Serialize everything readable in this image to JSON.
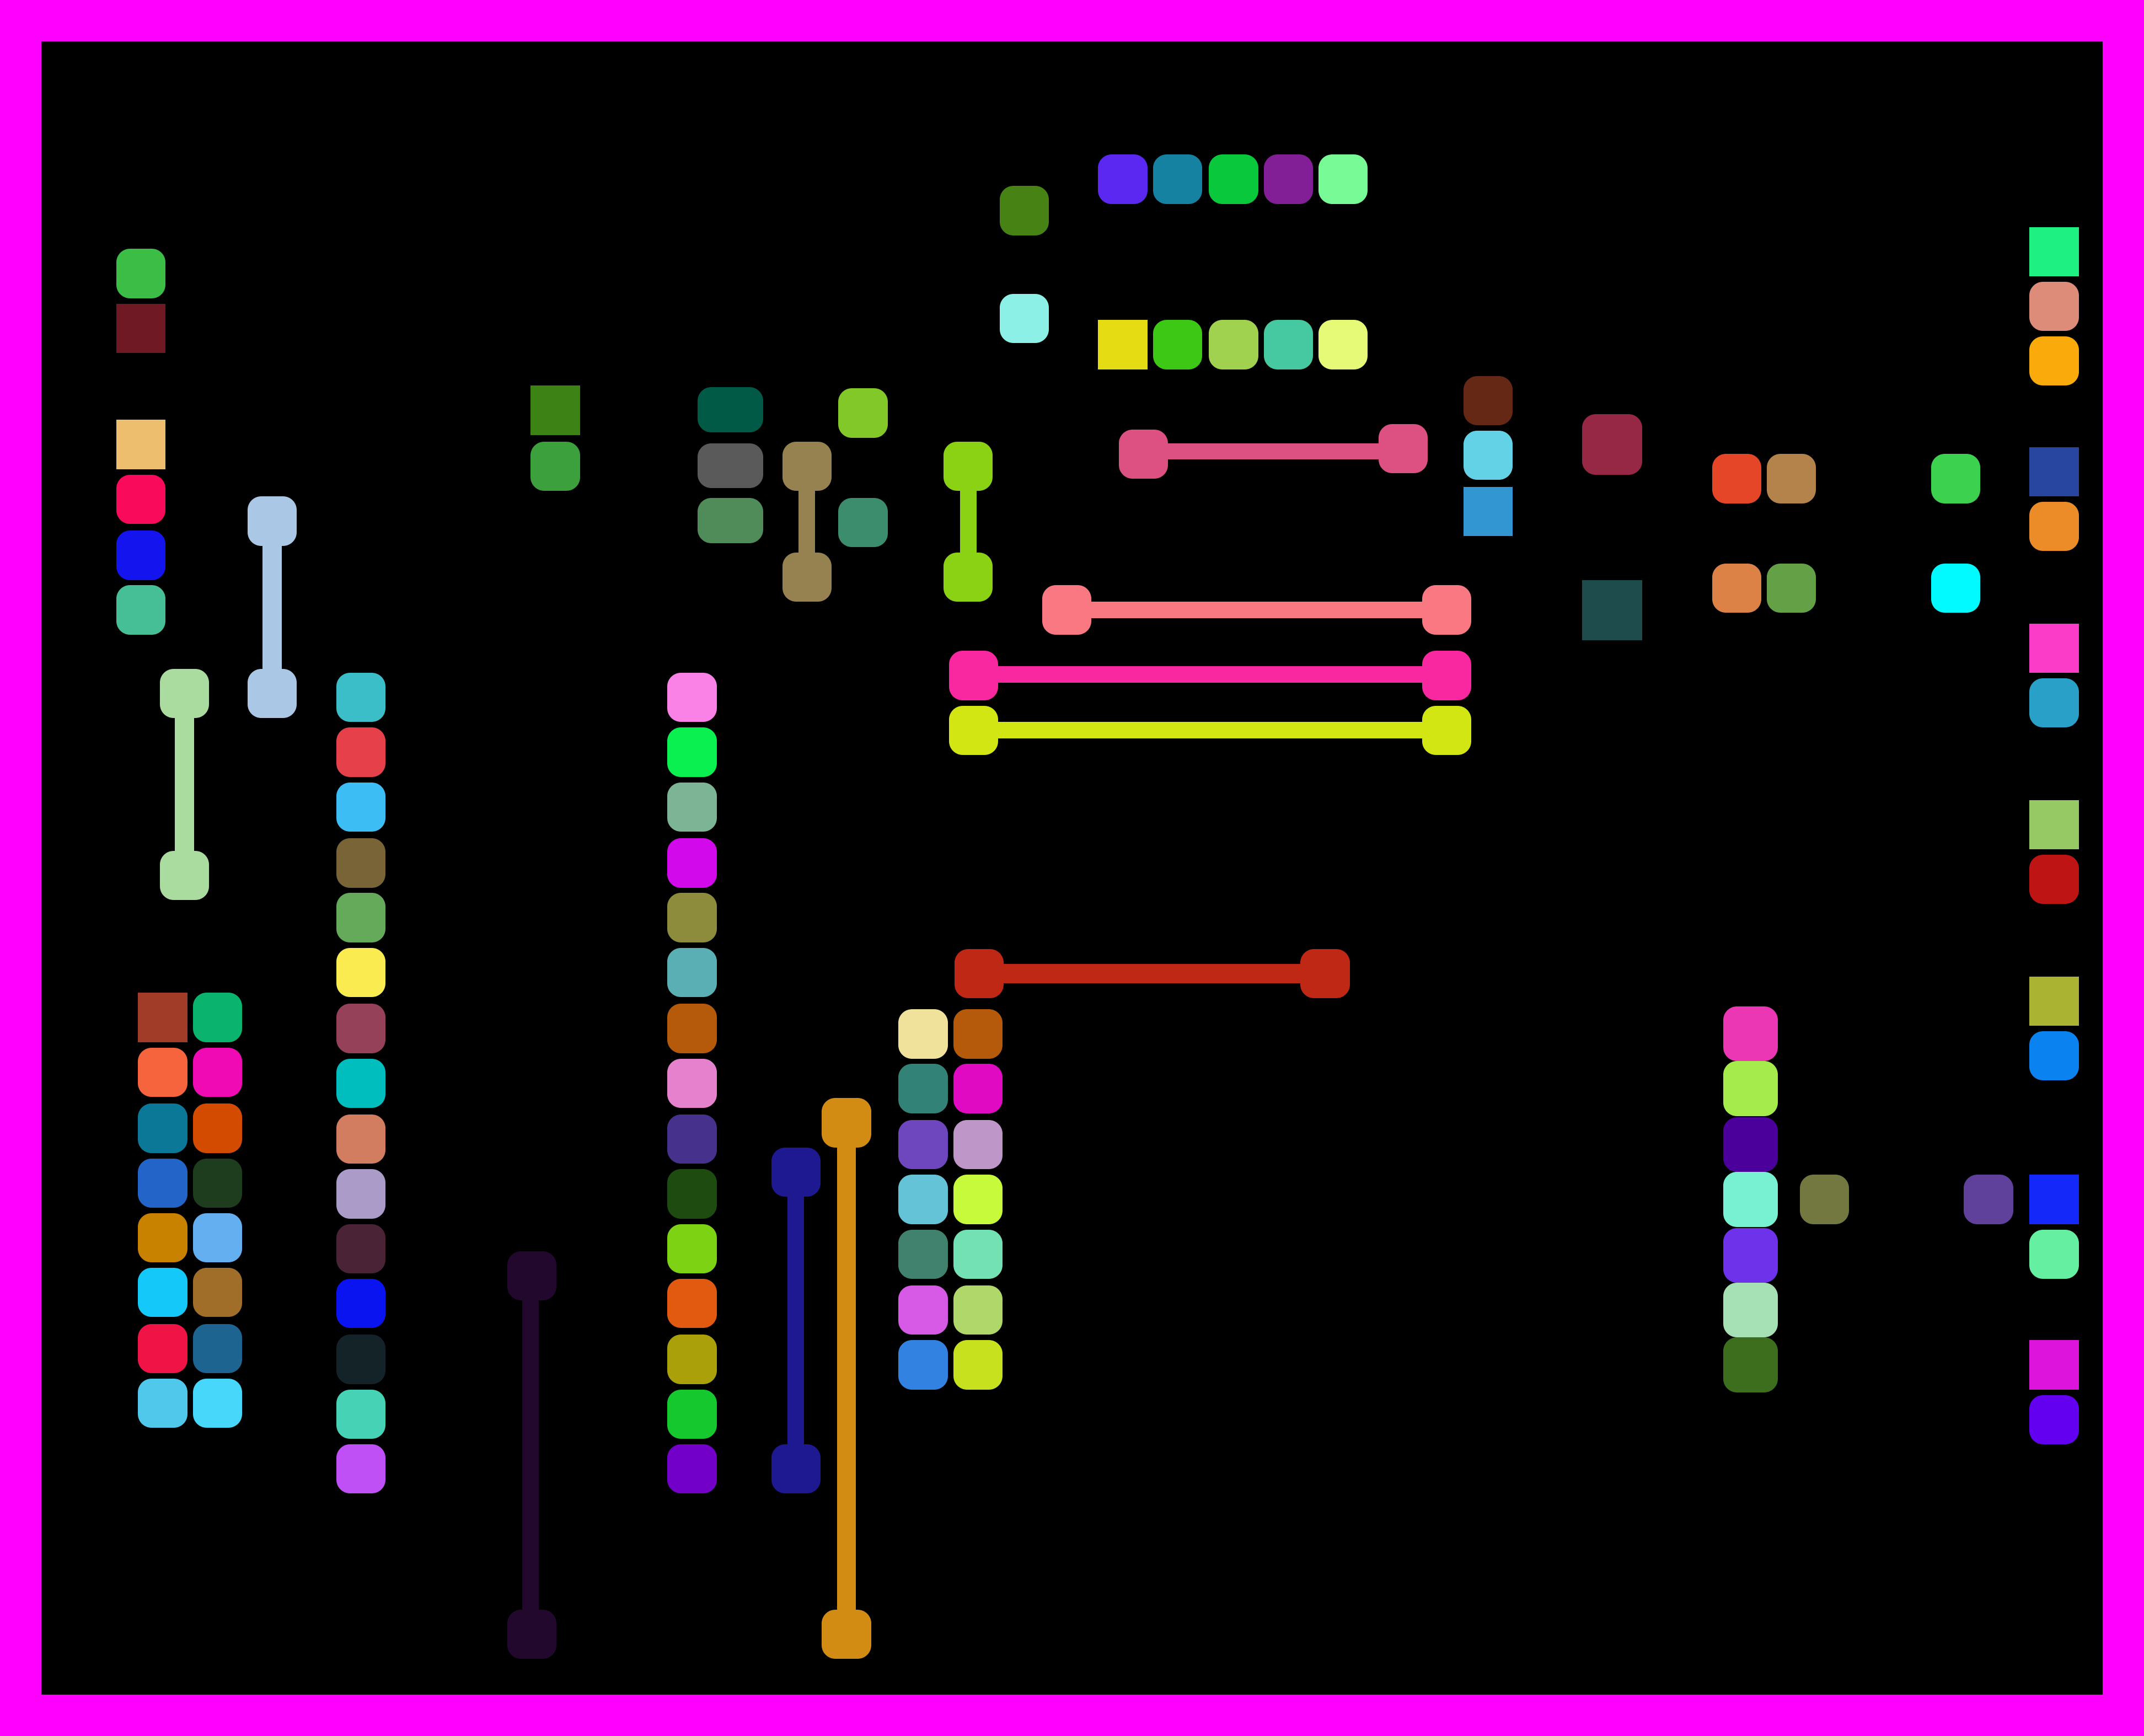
{
  "board": {
    "frame_color": "#ff00ff",
    "background": "#000000"
  },
  "palette": [
    "#3cbe46",
    "#6e1923",
    "#ecbe6e",
    "#fa0a5a",
    "#1414ee",
    "#46be96",
    "#aac8e6",
    "#aadca0",
    "#3c8214",
    "#3ca03c",
    "#005a46",
    "#5a5a5a",
    "#508c5a",
    "#82c828",
    "#968250",
    "#3c8c6e",
    "#8cd214",
    "#468214",
    "#8cf0e6",
    "#5a28f0",
    "#1482a0",
    "#0ac83c",
    "#821e96",
    "#78fa96",
    "#e6dc14",
    "#3cc814",
    "#a0d250",
    "#46c8a0",
    "#e6fa78",
    "#dc5082",
    "#642814",
    "#64d2e6",
    "#3296d2",
    "#962846",
    "#1e4b4b",
    "#e64628",
    "#b4824b",
    "#dc8246",
    "#64a046",
    "#3cd250",
    "#00faff",
    "#1ef082",
    "#dc8c78",
    "#faaa0a",
    "#2846a0",
    "#eb8c28",
    "#fa3cc8",
    "#28a0c8",
    "#96c864",
    "#be1414",
    "#aab432",
    "#0a82f0",
    "#1428fa",
    "#64f0a0",
    "#dc14dc",
    "#6400f0",
    "#fa7882",
    "#fa28a0",
    "#d2e614",
    "#be2814",
    "#3cbec8",
    "#e6414b",
    "#3cbef5",
    "#786437",
    "#64aa5a",
    "#faeb50",
    "#96415a",
    "#00bebe",
    "#d27d5f",
    "#aa9bc8",
    "#4b2337",
    "#0a14f0",
    "#142328",
    "#46d2b4",
    "#be50f5",
    "#fa82e6",
    "#0af050",
    "#7db496",
    "#d20aeb",
    "#8c8c3c",
    "#5aafb4",
    "#b45a0a",
    "#e682cd",
    "#46328c",
    "#1e4b0f",
    "#7dd214",
    "#e15a0f",
    "#aaa00a",
    "#14c82d",
    "#7300c8",
    "#a03c28",
    "#0ab46e",
    "#f5643c",
    "#f00ab4",
    "#0a7896",
    "#d24b00",
    "#2364c8",
    "#1e3c1e",
    "#c88200",
    "#64aff0",
    "#14c8fa",
    "#a06e28",
    "#f01446",
    "#1e6491",
    "#50c8eb",
    "#46d7fa",
    "#23082d",
    "#1e1991",
    "#d28c14",
    "#f0e19b",
    "#b45a0a",
    "#328278",
    "#e10ac3",
    "#6e46be",
    "#be96c8",
    "#64c3d7",
    "#c8fa3c",
    "#41826e",
    "#73e1b4",
    "#d75ae6",
    "#afd769",
    "#3282e1",
    "#c8e11e",
    "#eb37b4",
    "#a5eb4b",
    "#4b009b",
    "#78f0d2",
    "#6e32eb",
    "#a5e1b4",
    "#3c6e1e",
    "#737841",
    "#5f419b"
  ]
}
